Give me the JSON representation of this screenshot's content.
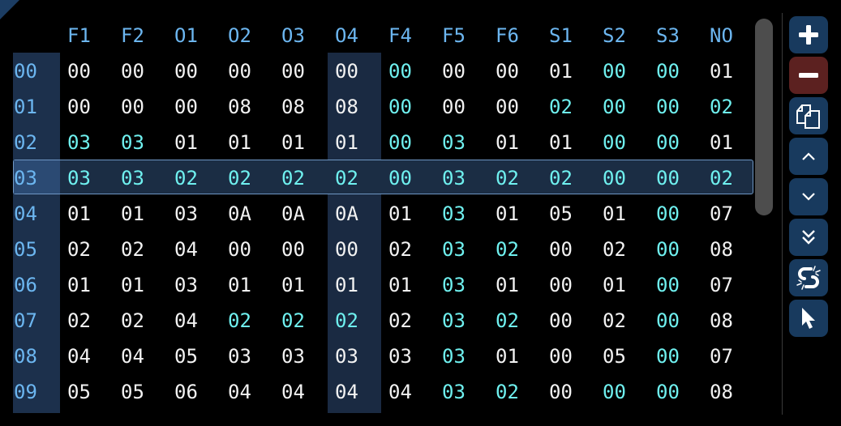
{
  "columns": [
    "F1",
    "F2",
    "O1",
    "O2",
    "O3",
    "O4",
    "F4",
    "F5",
    "F6",
    "S1",
    "S2",
    "S3",
    "NO"
  ],
  "highlighted_column": "O4",
  "selected_row": "03",
  "colors": {
    "normal": "#f2f2f2",
    "changed": "#6ff0ef",
    "header": "#6cb6f0",
    "button": "#183a5e",
    "remove_button": "#5c2120"
  },
  "rows": [
    {
      "label": "00",
      "values": [
        "00",
        "00",
        "00",
        "00",
        "00",
        "00",
        "00",
        "00",
        "00",
        "01",
        "00",
        "00",
        "01"
      ],
      "changed": [
        0,
        0,
        0,
        0,
        0,
        0,
        1,
        0,
        0,
        0,
        1,
        1,
        0
      ]
    },
    {
      "label": "01",
      "values": [
        "00",
        "00",
        "00",
        "08",
        "08",
        "08",
        "00",
        "00",
        "00",
        "02",
        "00",
        "00",
        "02"
      ],
      "changed": [
        0,
        0,
        0,
        0,
        0,
        0,
        1,
        0,
        0,
        1,
        1,
        1,
        1
      ]
    },
    {
      "label": "02",
      "values": [
        "03",
        "03",
        "01",
        "01",
        "01",
        "01",
        "00",
        "03",
        "01",
        "01",
        "00",
        "00",
        "01"
      ],
      "changed": [
        1,
        1,
        0,
        0,
        0,
        0,
        1,
        1,
        0,
        0,
        1,
        1,
        0
      ]
    },
    {
      "label": "03",
      "values": [
        "03",
        "03",
        "02",
        "02",
        "02",
        "02",
        "00",
        "03",
        "02",
        "02",
        "00",
        "00",
        "02"
      ],
      "changed": [
        1,
        1,
        1,
        1,
        1,
        1,
        1,
        1,
        1,
        1,
        1,
        1,
        1
      ]
    },
    {
      "label": "04",
      "values": [
        "01",
        "01",
        "03",
        "0A",
        "0A",
        "0A",
        "01",
        "03",
        "01",
        "05",
        "01",
        "00",
        "07"
      ],
      "changed": [
        0,
        0,
        0,
        0,
        0,
        0,
        0,
        1,
        0,
        0,
        0,
        1,
        0
      ]
    },
    {
      "label": "05",
      "values": [
        "02",
        "02",
        "04",
        "00",
        "00",
        "00",
        "02",
        "03",
        "02",
        "00",
        "02",
        "00",
        "08"
      ],
      "changed": [
        0,
        0,
        0,
        0,
        0,
        0,
        0,
        1,
        1,
        0,
        0,
        1,
        0
      ]
    },
    {
      "label": "06",
      "values": [
        "01",
        "01",
        "03",
        "01",
        "01",
        "01",
        "01",
        "03",
        "01",
        "00",
        "01",
        "00",
        "07"
      ],
      "changed": [
        0,
        0,
        0,
        0,
        0,
        0,
        0,
        1,
        0,
        0,
        0,
        1,
        0
      ]
    },
    {
      "label": "07",
      "values": [
        "02",
        "02",
        "04",
        "02",
        "02",
        "02",
        "02",
        "03",
        "02",
        "00",
        "02",
        "00",
        "08"
      ],
      "changed": [
        0,
        0,
        0,
        1,
        1,
        1,
        0,
        1,
        1,
        0,
        0,
        1,
        0
      ]
    },
    {
      "label": "08",
      "values": [
        "04",
        "04",
        "05",
        "03",
        "03",
        "03",
        "03",
        "03",
        "01",
        "00",
        "05",
        "00",
        "07"
      ],
      "changed": [
        0,
        0,
        0,
        0,
        0,
        0,
        0,
        1,
        0,
        0,
        0,
        1,
        0
      ]
    },
    {
      "label": "09",
      "values": [
        "05",
        "05",
        "06",
        "04",
        "04",
        "04",
        "04",
        "03",
        "02",
        "00",
        "00",
        "00",
        "08"
      ],
      "changed": [
        0,
        0,
        0,
        0,
        0,
        0,
        0,
        1,
        1,
        0,
        1,
        1,
        0
      ]
    }
  ],
  "toolbar": [
    {
      "name": "add-row-button",
      "icon": "plus-icon"
    },
    {
      "name": "remove-row-button",
      "icon": "minus-icon"
    },
    {
      "name": "duplicate-button",
      "icon": "copy-icon"
    },
    {
      "name": "move-up-button",
      "icon": "chevron-up-icon"
    },
    {
      "name": "move-down-button",
      "icon": "chevron-down-icon"
    },
    {
      "name": "move-bottom-button",
      "icon": "double-chevron-down-icon"
    },
    {
      "name": "unlink-button",
      "icon": "unlink-icon"
    },
    {
      "name": "select-button",
      "icon": "cursor-icon"
    }
  ]
}
